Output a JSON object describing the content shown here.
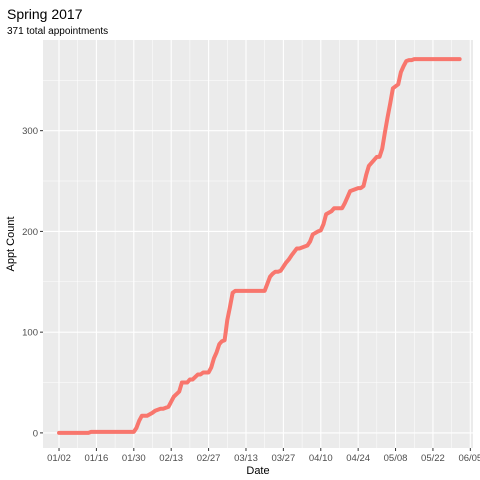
{
  "chart_data": {
    "type": "line",
    "title": "Spring 2017",
    "subtitle": "371 total appointments",
    "xlabel": "Date",
    "ylabel": "Appt Count",
    "xlim": [
      "2016-12-27",
      "2017-06-06"
    ],
    "ylim": [
      -15,
      390
    ],
    "grid": true,
    "x_ticks": [
      "2017-01-02",
      "2017-01-16",
      "2017-01-30",
      "2017-02-13",
      "2017-02-27",
      "2017-03-13",
      "2017-03-27",
      "2017-04-10",
      "2017-04-24",
      "2017-05-08",
      "2017-05-22",
      "2017-06-05"
    ],
    "x_tick_labels": [
      "01/02",
      "01/16",
      "01/30",
      "02/13",
      "02/27",
      "03/13",
      "03/27",
      "04/10",
      "04/24",
      "05/08",
      "05/22",
      "06/05"
    ],
    "y_ticks": [
      0,
      100,
      200,
      300
    ],
    "y_tick_labels": [
      "0",
      "100",
      "200",
      "300"
    ],
    "line_color": "#F8766D",
    "panel_color": "#EBEBEB",
    "series": [
      {
        "x": [
          "2017-01-02",
          "2017-01-13",
          "2017-01-14",
          "2017-01-30",
          "2017-01-31",
          "2017-02-01",
          "2017-02-02",
          "2017-02-03",
          "2017-02-04",
          "2017-02-06",
          "2017-02-07",
          "2017-02-09",
          "2017-02-10",
          "2017-02-12",
          "2017-02-14",
          "2017-02-16",
          "2017-02-17",
          "2017-02-18",
          "2017-02-19",
          "2017-02-20",
          "2017-02-21",
          "2017-02-23",
          "2017-02-24",
          "2017-02-25",
          "2017-02-27",
          "2017-02-28",
          "2017-03-01",
          "2017-03-02",
          "2017-03-03",
          "2017-03-04",
          "2017-03-05",
          "2017-03-06",
          "2017-03-07",
          "2017-03-08",
          "2017-03-09",
          "2017-03-10",
          "2017-03-20",
          "2017-03-21",
          "2017-03-22",
          "2017-03-23",
          "2017-03-24",
          "2017-03-25",
          "2017-03-26",
          "2017-03-27",
          "2017-03-28",
          "2017-03-29",
          "2017-03-30",
          "2017-04-01",
          "2017-04-02",
          "2017-04-04",
          "2017-04-05",
          "2017-04-06",
          "2017-04-07",
          "2017-04-09",
          "2017-04-10",
          "2017-04-11",
          "2017-04-12",
          "2017-04-14",
          "2017-04-15",
          "2017-04-17",
          "2017-04-18",
          "2017-04-19",
          "2017-04-20",
          "2017-04-21",
          "2017-04-24",
          "2017-04-25",
          "2017-04-26",
          "2017-04-27",
          "2017-04-28",
          "2017-05-01",
          "2017-05-02",
          "2017-05-03",
          "2017-05-04",
          "2017-05-05",
          "2017-05-06",
          "2017-05-07",
          "2017-05-08",
          "2017-05-09",
          "2017-05-10",
          "2017-05-11",
          "2017-05-12",
          "2017-05-13",
          "2017-05-14",
          "2017-05-15",
          "2017-05-16",
          "2017-05-17",
          "2017-05-18",
          "2017-05-19",
          "2017-05-20",
          "2017-05-22",
          "2017-05-23",
          "2017-05-24",
          "2017-05-25",
          "2017-05-26",
          "2017-05-27",
          "2017-05-28",
          "2017-05-29",
          "2017-05-30",
          "2017-05-31",
          "2017-06-01"
        ],
        "y": [
          0,
          0,
          1,
          1,
          5,
          12,
          17,
          17,
          17,
          20,
          22,
          24,
          24,
          26,
          36,
          41,
          50,
          50,
          50,
          53,
          53,
          58,
          58,
          60,
          60,
          65,
          74,
          80,
          88,
          91,
          92,
          112,
          125,
          139,
          141,
          141,
          141,
          148,
          155,
          158,
          160,
          160,
          161,
          165,
          169,
          172,
          176,
          183,
          183,
          185,
          186,
          190,
          197,
          200,
          201,
          207,
          217,
          220,
          223,
          223,
          223,
          228,
          234,
          240,
          243,
          243,
          245,
          256,
          265,
          274,
          274,
          282,
          298,
          313,
          327,
          342,
          344,
          346,
          358,
          364,
          369,
          370,
          370,
          371,
          371,
          371,
          371,
          371,
          371,
          371,
          371,
          371,
          371,
          371,
          371,
          371,
          371,
          371,
          371,
          371
        ]
      }
    ]
  }
}
